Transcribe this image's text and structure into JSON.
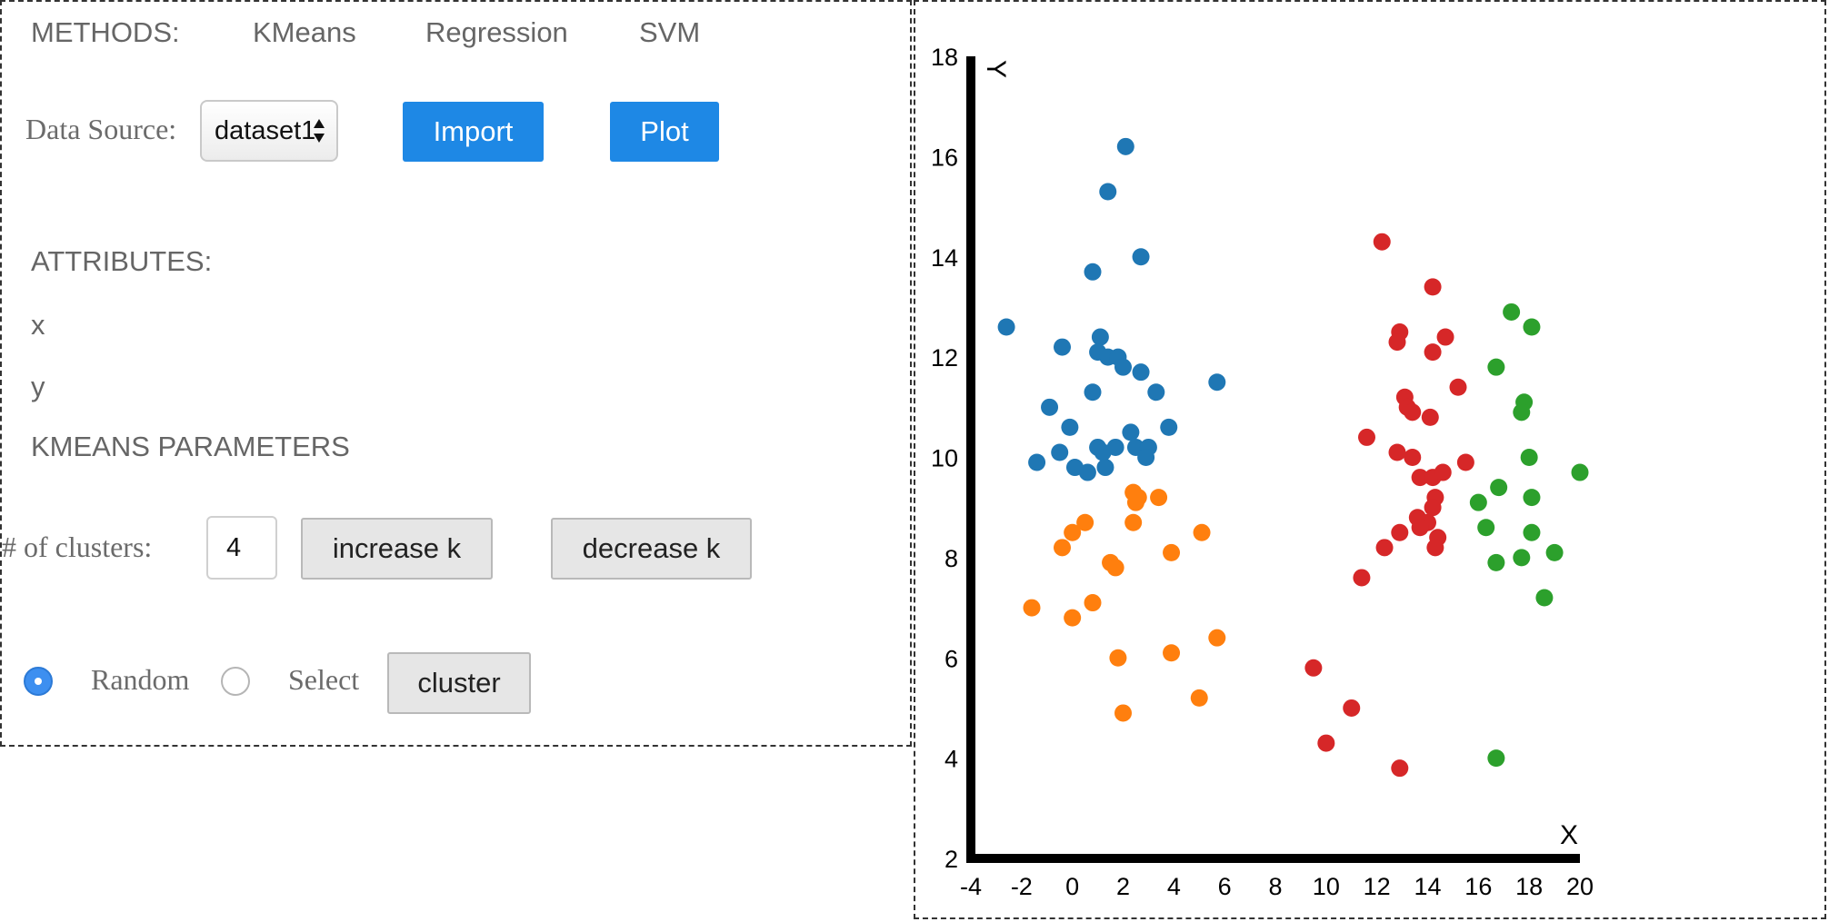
{
  "menu": {
    "label": "METHODS:",
    "items": [
      "KMeans",
      "Regression",
      "SVM"
    ]
  },
  "data_source": {
    "label": "Data Source:",
    "selected": "dataset1",
    "import_label": "Import",
    "plot_label": "Plot"
  },
  "attributes": {
    "heading": "ATTRIBUTES:",
    "items": [
      "x",
      "y"
    ]
  },
  "kmeans": {
    "heading": "KMEANS PARAMETERS",
    "clusters_label": "# of clusters:",
    "clusters_value": "4",
    "increase_label": "increase k",
    "decrease_label": "decrease k",
    "init_options": [
      "Random",
      "Select"
    ],
    "init_selected": "Random",
    "cluster_label": "cluster"
  },
  "colors": {
    "accent": "#1e88e5",
    "radio_selected": "#3d8ff0"
  },
  "chart_data": {
    "type": "scatter",
    "xlabel": "X",
    "ylabel": "Y",
    "xlim": [
      -4,
      20
    ],
    "ylim": [
      2,
      18
    ],
    "xticks": [
      -4,
      -2,
      0,
      2,
      4,
      6,
      8,
      10,
      12,
      14,
      16,
      18,
      20
    ],
    "yticks": [
      2,
      4,
      6,
      8,
      10,
      12,
      14,
      16,
      18
    ],
    "grid": false,
    "series": [
      {
        "color": "#1f77b4",
        "points": [
          [
            2.1,
            16.2
          ],
          [
            1.4,
            15.3
          ],
          [
            2.7,
            14.0
          ],
          [
            0.8,
            13.7
          ],
          [
            -2.6,
            12.6
          ],
          [
            1.1,
            12.4
          ],
          [
            -0.4,
            12.2
          ],
          [
            1.0,
            12.1
          ],
          [
            1.4,
            12.0
          ],
          [
            1.8,
            12.0
          ],
          [
            2.0,
            11.8
          ],
          [
            2.7,
            11.7
          ],
          [
            5.7,
            11.5
          ],
          [
            3.3,
            11.3
          ],
          [
            0.8,
            11.3
          ],
          [
            -0.9,
            11.0
          ],
          [
            3.8,
            10.6
          ],
          [
            -0.1,
            10.6
          ],
          [
            2.3,
            10.5
          ],
          [
            1.0,
            10.2
          ],
          [
            1.7,
            10.2
          ],
          [
            2.5,
            10.2
          ],
          [
            3.0,
            10.2
          ],
          [
            1.2,
            10.1
          ],
          [
            -0.5,
            10.1
          ],
          [
            -1.4,
            9.9
          ],
          [
            2.9,
            10.0
          ],
          [
            0.1,
            9.8
          ],
          [
            0.6,
            9.7
          ],
          [
            1.3,
            9.8
          ]
        ]
      },
      {
        "color": "#ff7f0e",
        "points": [
          [
            2.4,
            9.3
          ],
          [
            3.4,
            9.2
          ],
          [
            2.5,
            9.1
          ],
          [
            2.6,
            9.2
          ],
          [
            2.4,
            8.7
          ],
          [
            0.5,
            8.7
          ],
          [
            0.0,
            8.5
          ],
          [
            5.1,
            8.5
          ],
          [
            -0.4,
            8.2
          ],
          [
            3.9,
            8.1
          ],
          [
            1.5,
            7.9
          ],
          [
            1.7,
            7.8
          ],
          [
            -1.6,
            7.0
          ],
          [
            0.8,
            7.1
          ],
          [
            0.0,
            6.8
          ],
          [
            5.7,
            6.4
          ],
          [
            1.8,
            6.0
          ],
          [
            3.9,
            6.1
          ],
          [
            5.0,
            5.2
          ],
          [
            2.0,
            4.9
          ]
        ]
      },
      {
        "color": "#d62728",
        "points": [
          [
            12.2,
            14.3
          ],
          [
            14.2,
            13.4
          ],
          [
            12.9,
            12.5
          ],
          [
            12.8,
            12.3
          ],
          [
            14.7,
            12.4
          ],
          [
            14.2,
            12.1
          ],
          [
            15.2,
            11.4
          ],
          [
            13.1,
            11.2
          ],
          [
            13.2,
            11.0
          ],
          [
            13.4,
            10.9
          ],
          [
            14.1,
            10.8
          ],
          [
            11.6,
            10.4
          ],
          [
            12.8,
            10.1
          ],
          [
            13.4,
            10.0
          ],
          [
            15.5,
            9.9
          ],
          [
            13.7,
            9.6
          ],
          [
            14.2,
            9.6
          ],
          [
            14.6,
            9.7
          ],
          [
            14.3,
            9.2
          ],
          [
            14.2,
            9.0
          ],
          [
            13.6,
            8.8
          ],
          [
            14.0,
            8.7
          ],
          [
            13.7,
            8.6
          ],
          [
            12.9,
            8.5
          ],
          [
            14.4,
            8.4
          ],
          [
            14.3,
            8.2
          ],
          [
            12.3,
            8.2
          ],
          [
            11.4,
            7.6
          ],
          [
            9.5,
            5.8
          ],
          [
            11.0,
            5.0
          ],
          [
            10.0,
            4.3
          ],
          [
            12.9,
            3.8
          ]
        ]
      },
      {
        "color": "#2ca02c",
        "points": [
          [
            17.3,
            12.9
          ],
          [
            18.1,
            12.6
          ],
          [
            16.7,
            11.8
          ],
          [
            17.8,
            11.1
          ],
          [
            17.7,
            10.9
          ],
          [
            18.0,
            10.0
          ],
          [
            20.0,
            9.7
          ],
          [
            16.8,
            9.4
          ],
          [
            16.0,
            9.1
          ],
          [
            18.1,
            9.2
          ],
          [
            16.3,
            8.6
          ],
          [
            18.1,
            8.5
          ],
          [
            19.0,
            8.1
          ],
          [
            16.7,
            7.9
          ],
          [
            17.7,
            8.0
          ],
          [
            18.6,
            7.2
          ],
          [
            16.7,
            4.0
          ]
        ]
      }
    ]
  }
}
